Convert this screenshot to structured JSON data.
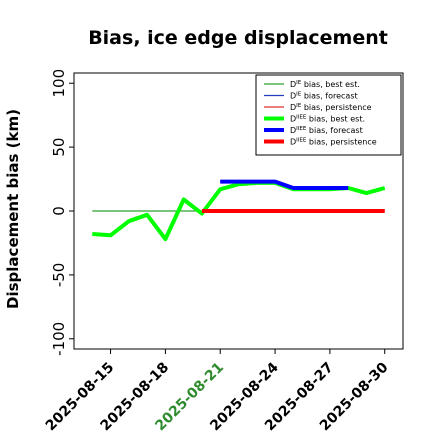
{
  "chart_data": {
    "type": "line",
    "title": "Bias, ice edge displacement",
    "ylabel": "Displacement bias (km)",
    "xlabel": "",
    "ylim": [
      -108,
      108
    ],
    "xlim": [
      "2025-08-13",
      "2025-08-31"
    ],
    "yticks": [
      -100,
      -50,
      0,
      50,
      100
    ],
    "xticks": [
      "2025-08-15",
      "2025-08-18",
      "2025-08-21",
      "2025-08-24",
      "2025-08-27",
      "2025-08-30"
    ],
    "highlight_xtick": "2025-08-21",
    "highlight_color": "#2e8b2e",
    "legend_position": "top-right",
    "series": [
      {
        "name": "D^IE bias, best est.",
        "color": "#2ca02c",
        "width": 1.2,
        "x": [
          "2025-08-14",
          "2025-08-15",
          "2025-08-16",
          "2025-08-17",
          "2025-08-18",
          "2025-08-19",
          "2025-08-20",
          "2025-08-21",
          "2025-08-22",
          "2025-08-23",
          "2025-08-24",
          "2025-08-25",
          "2025-08-26",
          "2025-08-27",
          "2025-08-28",
          "2025-08-29",
          "2025-08-30"
        ],
        "y": [
          0,
          0,
          0,
          0,
          0,
          0,
          0,
          0,
          0,
          0,
          0,
          0,
          0,
          0,
          0,
          0,
          0
        ]
      },
      {
        "name": "D^IE bias, forecast",
        "color": "#1f3fbf",
        "width": 1.2,
        "x": [
          "2025-08-21",
          "2025-08-22",
          "2025-08-23",
          "2025-08-24",
          "2025-08-25",
          "2025-08-26",
          "2025-08-27",
          "2025-08-28"
        ],
        "y": [
          0,
          0,
          0,
          0,
          0,
          0,
          0,
          0
        ]
      },
      {
        "name": "D^IE bias, persistence",
        "color": "#e03030",
        "width": 1.2,
        "x": [
          "2025-08-20",
          "2025-08-21",
          "2025-08-22",
          "2025-08-23",
          "2025-08-24",
          "2025-08-25",
          "2025-08-26",
          "2025-08-27",
          "2025-08-28",
          "2025-08-29",
          "2025-08-30"
        ],
        "y": [
          0,
          0,
          0,
          0,
          0,
          0,
          0,
          0,
          0,
          0,
          0
        ]
      },
      {
        "name": "D^IIEE bias, best est.",
        "color": "#00ff00",
        "width": 4,
        "x": [
          "2025-08-14",
          "2025-08-15",
          "2025-08-16",
          "2025-08-17",
          "2025-08-18",
          "2025-08-19",
          "2025-08-20",
          "2025-08-21",
          "2025-08-22",
          "2025-08-23",
          "2025-08-24",
          "2025-08-25",
          "2025-08-26",
          "2025-08-27",
          "2025-08-28",
          "2025-08-29",
          "2025-08-30"
        ],
        "y": [
          -18,
          -19,
          -8,
          -3,
          -22,
          9,
          -2,
          17,
          21,
          22,
          22,
          17,
          17,
          17,
          18,
          14,
          18
        ]
      },
      {
        "name": "D^IIEE bias, forecast",
        "color": "#0000ff",
        "width": 4,
        "x": [
          "2025-08-21",
          "2025-08-22",
          "2025-08-23",
          "2025-08-24",
          "2025-08-25",
          "2025-08-26",
          "2025-08-27",
          "2025-08-28"
        ],
        "y": [
          23,
          23,
          23,
          23,
          18,
          18,
          18,
          18
        ]
      },
      {
        "name": "D^IIEE bias, persistence",
        "color": "#ff0000",
        "width": 4,
        "x": [
          "2025-08-20",
          "2025-08-21",
          "2025-08-22",
          "2025-08-23",
          "2025-08-24",
          "2025-08-25",
          "2025-08-27",
          "2025-08-28",
          "2025-08-29",
          "2025-08-30"
        ],
        "y": [
          0,
          0,
          0,
          0,
          0,
          0,
          0,
          0,
          0,
          0
        ]
      }
    ],
    "legend": [
      {
        "prefix": "D",
        "sup": "IE",
        "text": " bias, best est.",
        "color": "#2ca02c",
        "width": 1.2
      },
      {
        "prefix": "D",
        "sup": "IE",
        "text": " bias, forecast",
        "color": "#1f3fbf",
        "width": 1.2
      },
      {
        "prefix": "D",
        "sup": "IE",
        "text": " bias, persistence",
        "color": "#e03030",
        "width": 1.2
      },
      {
        "prefix": "D",
        "sup": "IIEE",
        "text": " bias, best est.",
        "color": "#00ff00",
        "width": 4
      },
      {
        "prefix": "D",
        "sup": "IIEE",
        "text": " bias, forecast",
        "color": "#0000ff",
        "width": 4
      },
      {
        "prefix": "D",
        "sup": "IIEE",
        "text": " bias, persistence",
        "color": "#ff0000",
        "width": 4
      }
    ]
  }
}
